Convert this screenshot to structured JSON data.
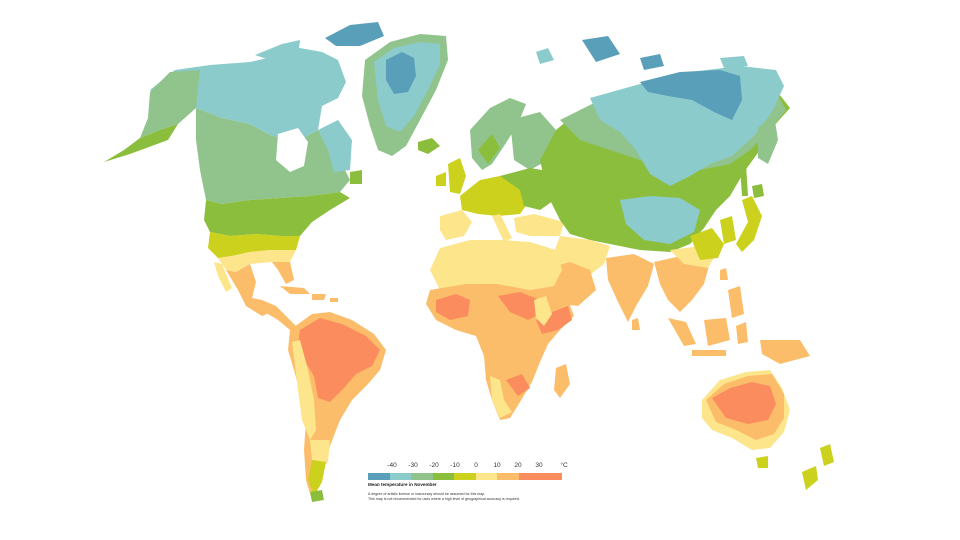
{
  "legend": {
    "title": "Mean temperature in November",
    "unit": "°C",
    "ticks": [
      "-40",
      "-30",
      "-20",
      "-10",
      "0",
      "10",
      "20",
      "30"
    ],
    "colors": [
      "#5a9fba",
      "#8ccbcb",
      "#90c48c",
      "#8cbe3e",
      "#cbd11d",
      "#fde58c",
      "#fcbd6a",
      "#fa8c5e"
    ],
    "note_1": "A degree of artistic license or inaccuracy should be assumed for this map.",
    "note_2": "This map is not recommended for uses where a high level of geographical accuracy is required."
  },
  "palette": {
    "band_minus40": "#5a9fba",
    "band_minus30": "#8ccbcb",
    "band_minus20": "#90c48c",
    "band_minus10": "#8cbe3e",
    "band_0": "#cbd11d",
    "band_10": "#fde58c",
    "band_20": "#fcbd6a",
    "band_30": "#fa8c5e"
  }
}
